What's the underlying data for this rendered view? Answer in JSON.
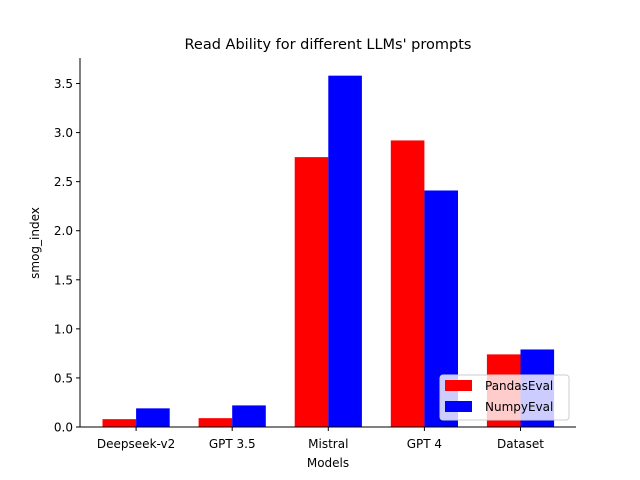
{
  "chart_data": {
    "type": "bar",
    "title": "Read Ability for different LLMs' prompts",
    "xlabel": "Models",
    "ylabel": "smog_index",
    "categories": [
      "Deepseek-v2",
      "GPT 3.5",
      "Mistral",
      "GPT 4",
      "Dataset"
    ],
    "series": [
      {
        "name": "PandasEval",
        "color": "#ff0000",
        "values": [
          0.08,
          0.09,
          2.75,
          2.92,
          0.74
        ]
      },
      {
        "name": "NumpyEval",
        "color": "#0000ff",
        "values": [
          0.19,
          0.22,
          3.58,
          2.41,
          0.79
        ]
      }
    ],
    "ylim": [
      0,
      3.76
    ],
    "yticks": [
      "0.0",
      "0.5",
      "1.0",
      "1.5",
      "2.0",
      "2.5",
      "3.0",
      "3.5"
    ],
    "grid": false,
    "legend_position": "lower-right"
  }
}
